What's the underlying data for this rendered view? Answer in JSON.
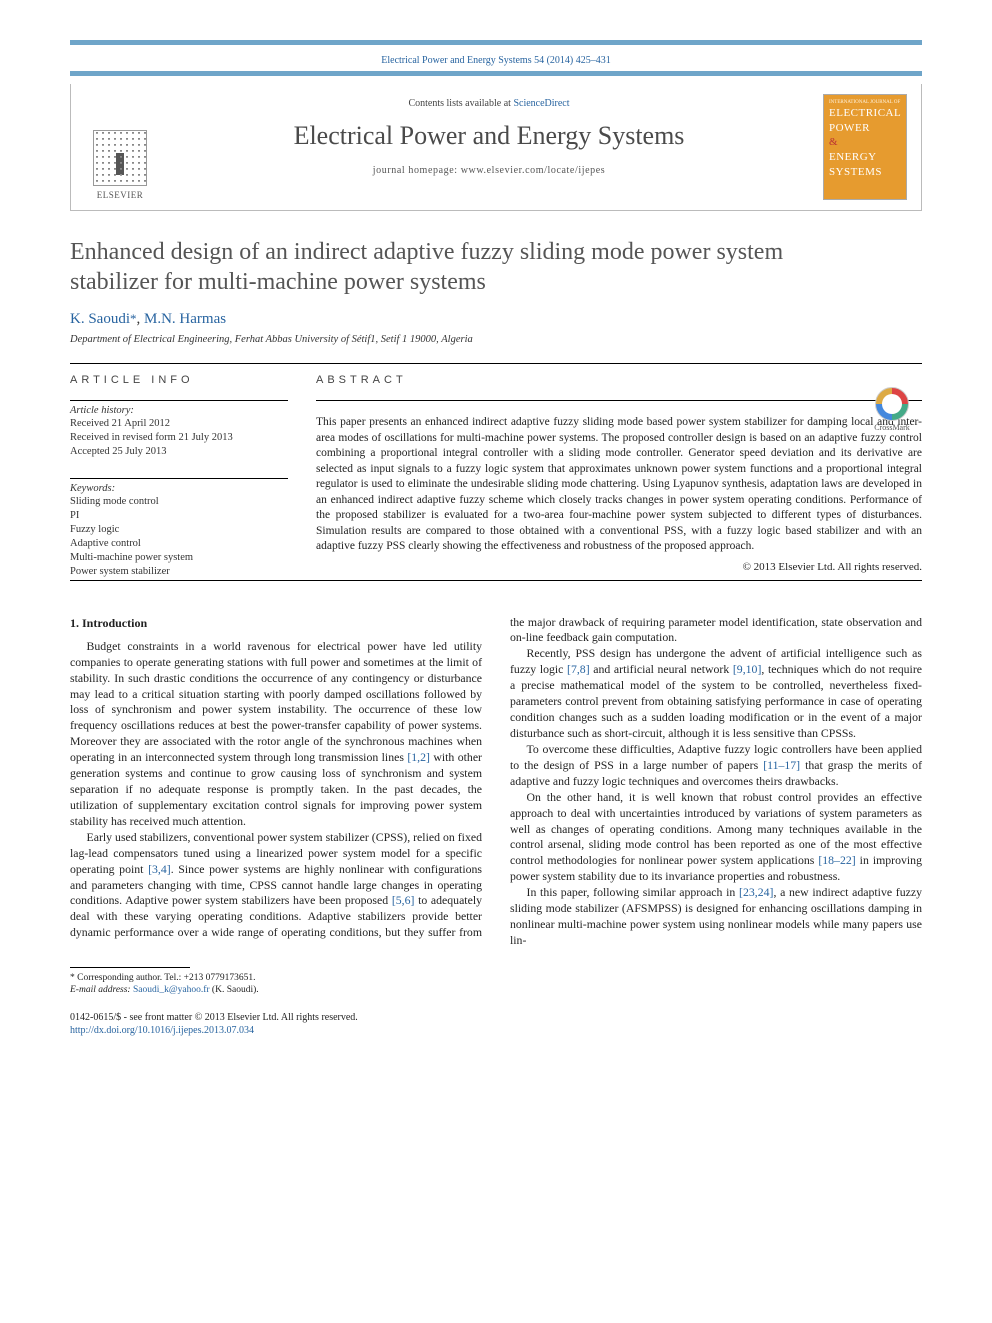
{
  "colors": {
    "accent_border": "#6fa5c9",
    "link": "#2864a0",
    "journal_cover_bg": "#e69b2f",
    "title_gray": "#555555"
  },
  "topbar": {
    "citation": "Electrical Power and Energy Systems 54 (2014) 425–431"
  },
  "masthead": {
    "publisher": "ELSEVIER",
    "contents_prefix": "Contents lists available at ",
    "contents_link": "ScienceDirect",
    "journal_name": "Electrical Power and Energy Systems",
    "homepage_label": "journal homepage: www.elsevier.com/locate/ijepes",
    "cover_small": "INTERNATIONAL JOURNAL OF",
    "cover_l1": "ELECTRICAL",
    "cover_l2": "POWER",
    "cover_amp": "&",
    "cover_l3": "ENERGY",
    "cover_l4": "SYSTEMS"
  },
  "crossmark": {
    "label": "CrossMark"
  },
  "title": "Enhanced design of an indirect adaptive fuzzy sliding mode power system stabilizer for multi-machine power systems",
  "authors": {
    "a1": "K. Saoudi",
    "corr": "*",
    "sep": ", ",
    "a2": "M.N. Harmas"
  },
  "affiliation": "Department of Electrical Engineering, Ferhat Abbas University of Sétif1, Setif 1 19000, Algeria",
  "info": {
    "head": "article info",
    "history_label": "Article history:",
    "h1": "Received 21 April 2012",
    "h2": "Received in revised form 21 July 2013",
    "h3": "Accepted 25 July 2013",
    "kw_label": "Keywords:",
    "k1": "Sliding mode control",
    "k2": "PI",
    "k3": "Fuzzy logic",
    "k4": "Adaptive control",
    "k5": "Multi-machine power system",
    "k6": "Power system stabilizer"
  },
  "abstract": {
    "head": "abstract",
    "text": "This paper presents an enhanced indirect adaptive fuzzy sliding mode based power system stabilizer for damping local and inter-area modes of oscillations for multi-machine power systems. The proposed controller design is based on an adaptive fuzzy control combining a proportional integral controller with a sliding mode controller. Generator speed deviation and its derivative are selected as input signals to a fuzzy logic system that approximates unknown power system functions and a proportional integral regulator is used to eliminate the undesirable sliding mode chattering. Using Lyapunov synthesis, adaptation laws are developed in an enhanced indirect adaptive fuzzy scheme which closely tracks changes in power system operating conditions. Performance of the proposed stabilizer is evaluated for a two-area four-machine power system subjected to different types of disturbances. Simulation results are compared to those obtained with a conventional PSS, with a fuzzy logic based stabilizer and with an adaptive fuzzy PSS clearly showing the effectiveness and robustness of the proposed approach.",
    "copyright": "© 2013 Elsevier Ltd. All rights reserved."
  },
  "body": {
    "section1_head": "1. Introduction",
    "p1": "Budget constraints in a world ravenous for electrical power have led utility companies to operate generating stations with full power and sometimes at the limit of stability. In such drastic conditions the occurrence of any contingency or disturbance may lead to a critical situation starting with poorly damped oscillations followed by loss of synchronism and power system instability. The occurrence of these low frequency oscillations reduces at best the power-transfer capability of power systems. Moreover they are associated with the rotor angle of the synchronous machines when operating in an interconnected system through long transmission lines ",
    "r12": "[1,2]",
    "p1b": " with other generation systems and continue to grow causing loss of synchronism and system separation if no adequate response is promptly taken. In the past decades, the utilization of supplementary excitation control signals for improving power system stability has received much attention.",
    "p2a": "Early used stabilizers, conventional power system stabilizer (CPSS), relied on fixed lag-lead compensators tuned using a linearized power system model for a specific operating point ",
    "r34": "[3,4]",
    "p2b": ". Since power systems are highly nonlinear with configurations and parameters changing with time, CPSS cannot handle large changes in operating conditions. Adaptive power system stabilizers have been proposed ",
    "r56": "[5,6]",
    "p2c": " to adequately deal with these varying operating conditions. Adaptive stabilizers provide better dynamic performance over a wide range of operating conditions, but they suffer from the major drawback of requiring parameter model identification, state observation and on-line feedback gain computation.",
    "p3a": "Recently, PSS design has undergone the advent of artificial intelligence such as fuzzy logic ",
    "r78": "[7,8]",
    "p3b": " and artificial neural network ",
    "r910": "[9,10]",
    "p3c": ", techniques which do not require a precise mathematical model of the system to be controlled, nevertheless fixed-parameters control prevent from obtaining satisfying performance in case of operating condition changes such as a sudden loading modification or in the event of a major disturbance such as short-circuit, although it is less sensitive than CPSSs.",
    "p4a": "To overcome these difficulties, Adaptive fuzzy logic controllers have been applied to the design of PSS in a large number of papers ",
    "r1117": "[11–17]",
    "p4b": " that grasp the merits of adaptive and fuzzy logic techniques and overcomes theirs drawbacks.",
    "p5a": "On the other hand, it is well known that robust control provides an effective approach to deal with uncertainties introduced by variations of system parameters as well as changes of operating conditions. Among many techniques available in the control arsenal, sliding mode control has been reported as one of the most effective control methodologies for nonlinear power system applications ",
    "r1822": "[18–22]",
    "p5b": " in improving power system stability due to its invariance properties and robustness.",
    "p6a": "In this paper, following similar approach in ",
    "r2324": "[23,24]",
    "p6b": ", a new indirect adaptive fuzzy sliding mode stabilizer (AFSMPSS) is designed for enhancing oscillations damping in nonlinear multi-machine power system using nonlinear models while many papers use lin-"
  },
  "footnote": {
    "corr_label": "* Corresponding author. Tel.: +213 0779173651.",
    "email_label": "E-mail address: ",
    "email": "Saoudi_k@yahoo.fr",
    "email_after": " (K. Saoudi)."
  },
  "bottom": {
    "line1": "0142-0615/$ - see front matter © 2013 Elsevier Ltd. All rights reserved.",
    "doi": "http://dx.doi.org/10.1016/j.ijepes.2013.07.034"
  }
}
